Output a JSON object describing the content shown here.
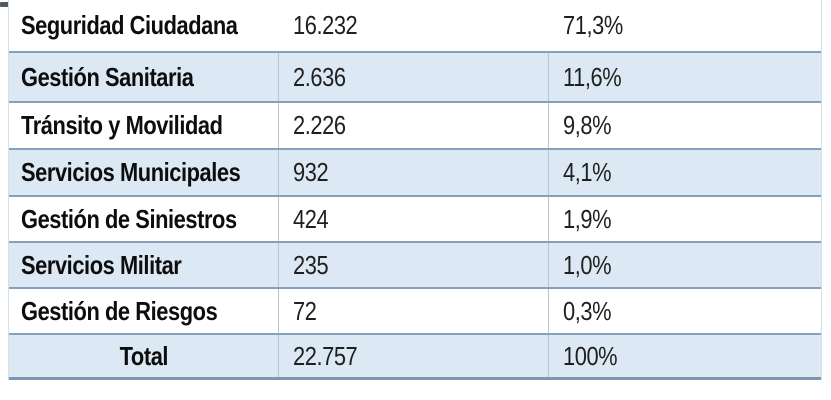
{
  "table": {
    "rows": [
      {
        "category": "Seguridad Ciudadana",
        "count": "16.232",
        "percent": "71,3%"
      },
      {
        "category": "Gestión Sanitaria",
        "count": "2.636",
        "percent": "11,6%"
      },
      {
        "category": "Tránsito y Movilidad",
        "count": "2.226",
        "percent": "9,8%"
      },
      {
        "category": "Servicios Municipales",
        "count": "932",
        "percent": "4,1%"
      },
      {
        "category": "Gestión de Siniestros",
        "count": "424",
        "percent": "1,9%"
      },
      {
        "category": "Servicios Militar",
        "count": "235",
        "percent": "1,0%"
      },
      {
        "category": "Gestión de Riesgos",
        "count": "72",
        "percent": "0,3%"
      },
      {
        "category": "Total",
        "count": "22.757",
        "percent": "100%"
      }
    ],
    "colors": {
      "row_shade": "#dce8f4",
      "row_border": "#87a1ba",
      "column_divider": "#b7c5d4",
      "bottom_border": "#7e96ad",
      "label_text": "#0d0d0d",
      "number_text": "#1f1f1f"
    }
  }
}
